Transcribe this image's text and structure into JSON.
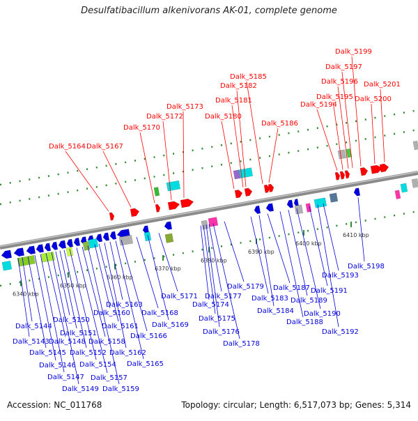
{
  "title": "Desulfatibacillum alkenivorans AK-01, complete genome",
  "footer": {
    "accession": "Accession: NC_011768",
    "topology": "Topology: circular; Length: 6,517,073 bp; Genes: 5,314"
  },
  "scale_ticks": [
    "6340 kbp",
    "6350 kbp",
    "6360 kbp",
    "6370 kbp",
    "6380 kbp",
    "6390 kbp",
    "6400 kbp",
    "6410 kbp"
  ],
  "forward_strand_genes": [
    "Dalk_5164",
    "Dalk_5167",
    "Dalk_5170",
    "Dalk_5172",
    "Dalk_5173",
    "Dalk_5180",
    "Dalk_5181",
    "Dalk_5182",
    "Dalk_5185",
    "Dalk_5186",
    "Dalk_5194",
    "Dalk_5195",
    "Dalk_5196",
    "Dalk_5197",
    "Dalk_5199",
    "Dalk_5200",
    "Dalk_5201"
  ],
  "reverse_strand_genes": [
    "Dalk_5143",
    "Dalk_5144",
    "Dalk_5145",
    "Dalk_5146",
    "Dalk_5147",
    "Dalk_5148",
    "Dalk_5149",
    "Dalk_5150",
    "Dalk_5151",
    "Dalk_5152",
    "Dalk_5154",
    "Dalk_5157",
    "Dalk_5158",
    "Dalk_5159",
    "Dalk_5160",
    "Dalk_5161",
    "Dalk_5162",
    "Dalk_5163",
    "Dalk_5165",
    "Dalk_5166",
    "Dalk_5168",
    "Dalk_5169",
    "Dalk_5171",
    "Dalk_5174",
    "Dalk_5175",
    "Dalk_5176",
    "Dalk_5177",
    "Dalk_5178",
    "Dalk_5179",
    "Dalk_5183",
    "Dalk_5184",
    "Dalk_5187",
    "Dalk_5188",
    "Dalk_5189",
    "Dalk_5190",
    "Dalk_5191",
    "Dalk_5192",
    "Dalk_5193",
    "Dalk_5198"
  ],
  "colors": {
    "forward_gene": "#ff0000",
    "reverse_gene": "#0000dd",
    "axis": "#8a8a8a",
    "tick": "#2e8b2e"
  }
}
